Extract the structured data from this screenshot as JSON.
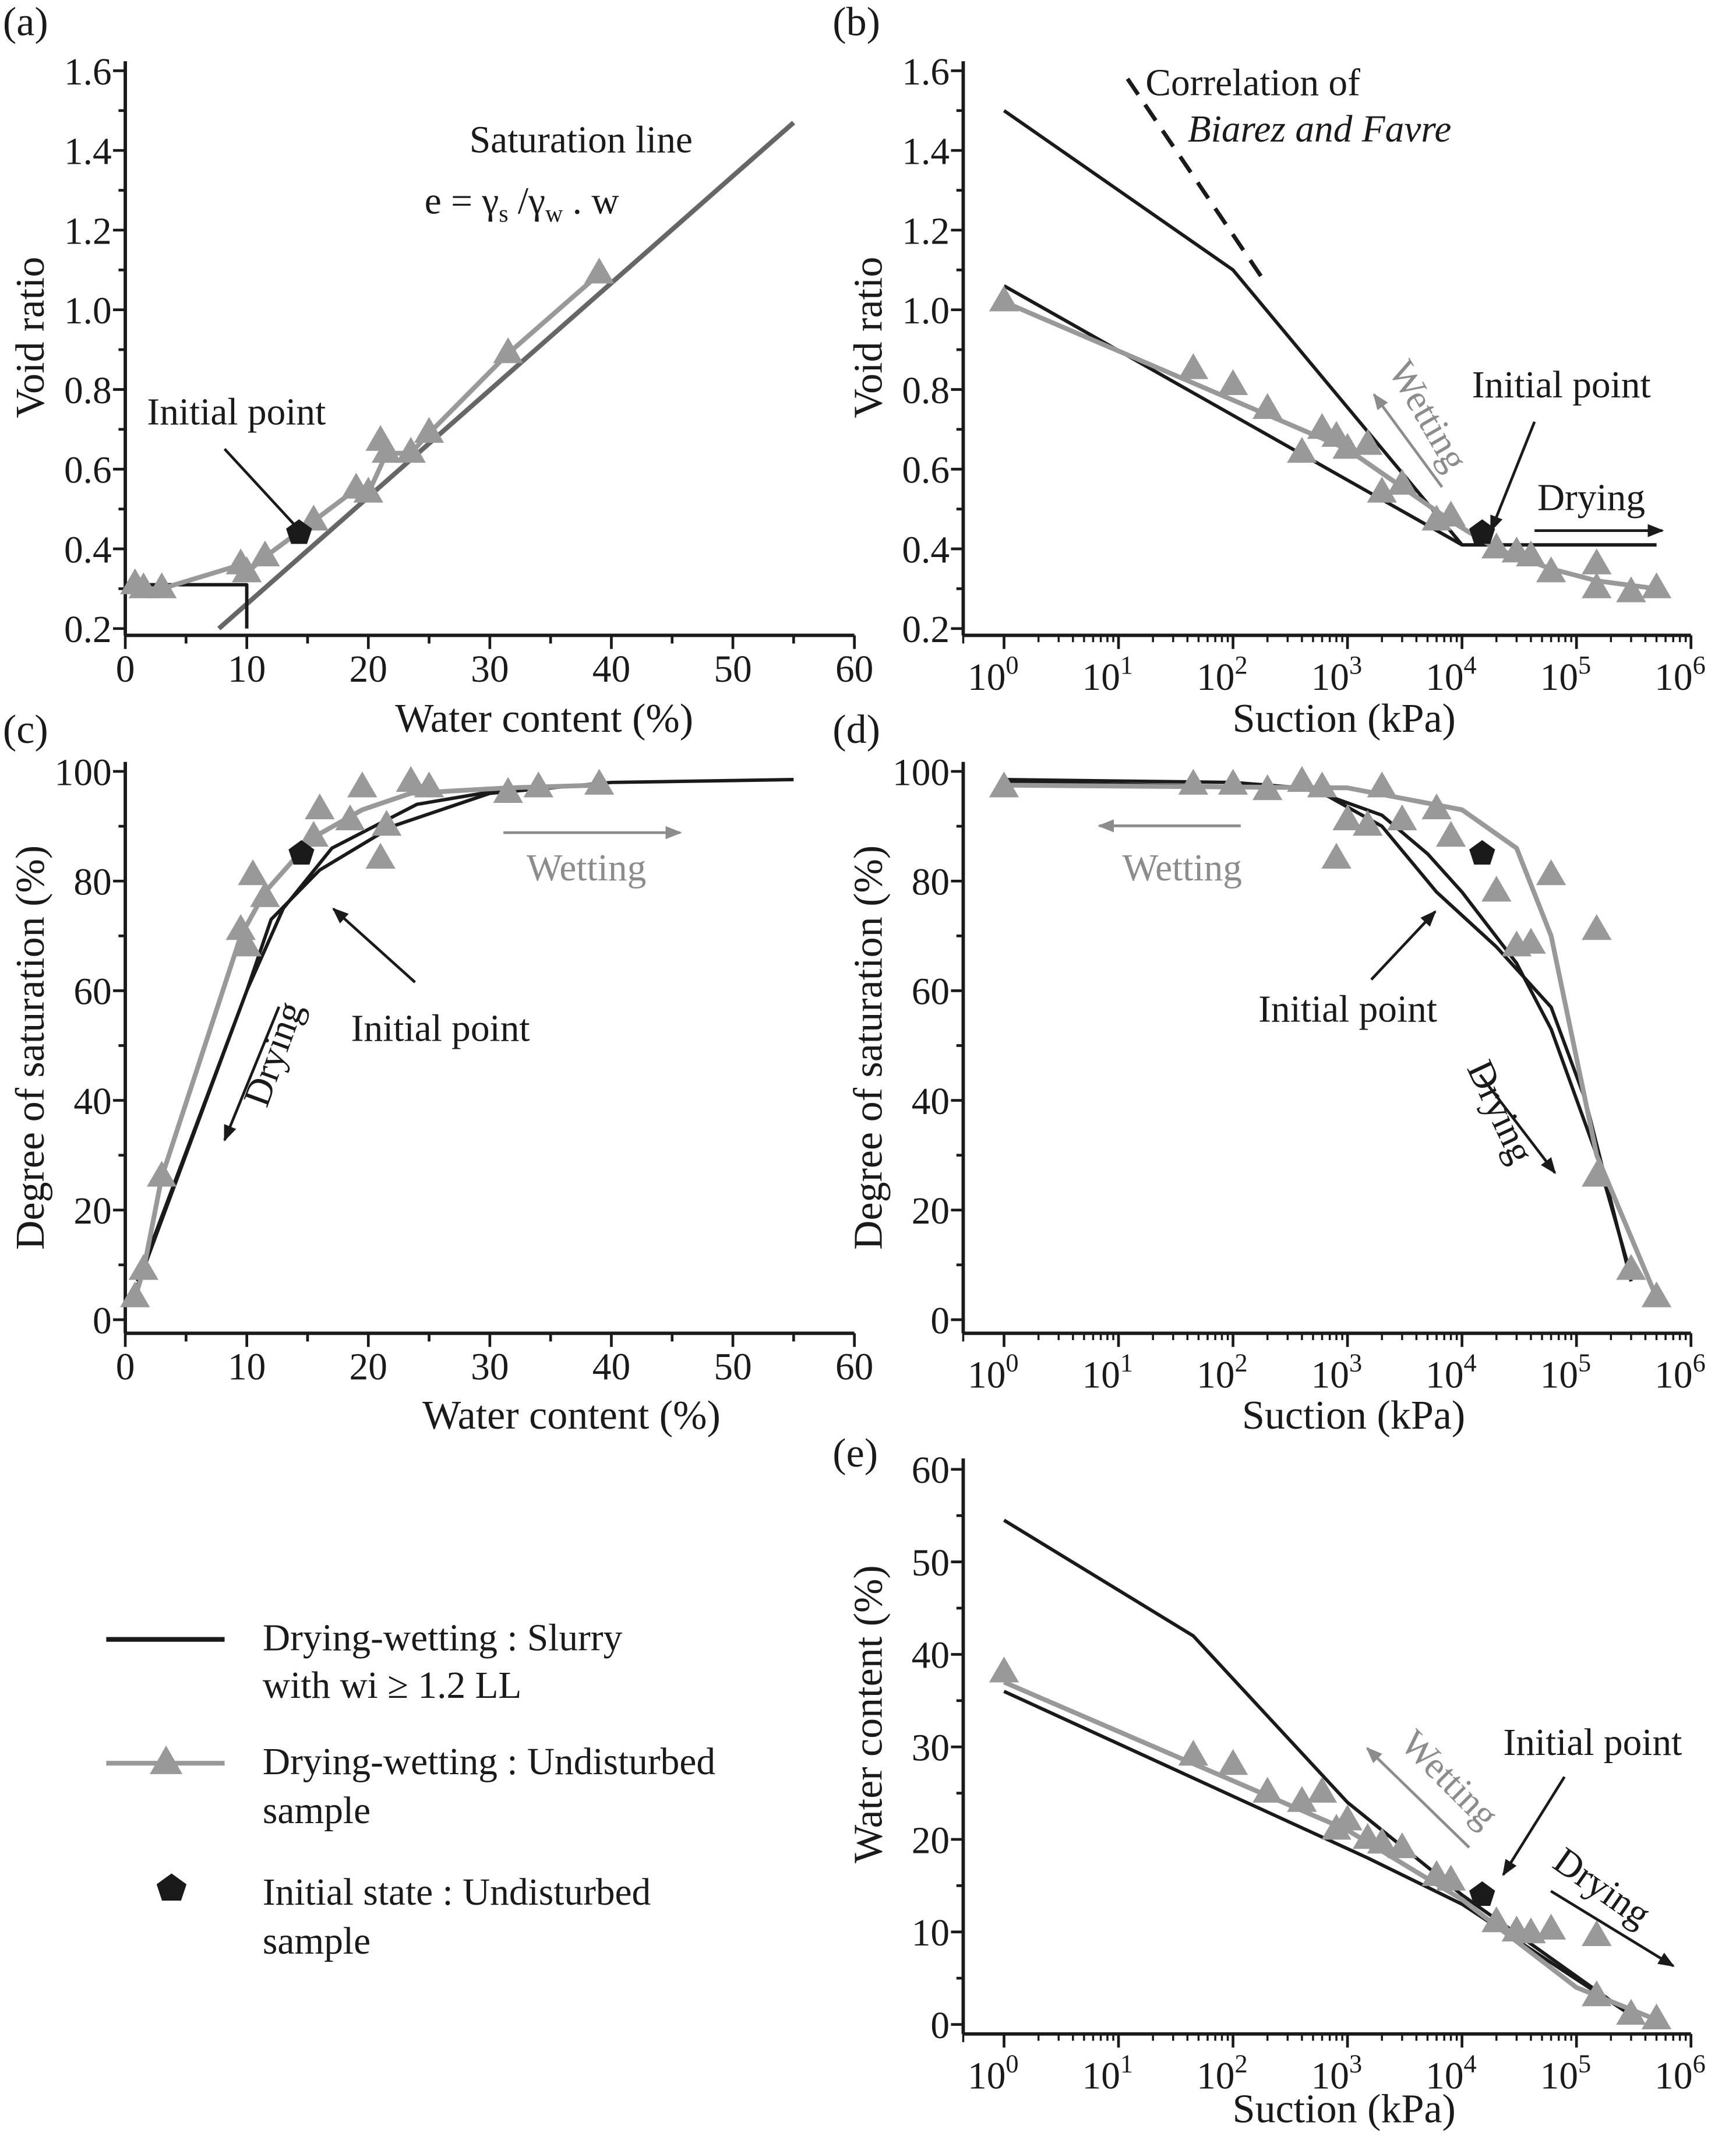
{
  "colors": {
    "slurry": "#1a1a1a",
    "undisturbed": "#999999",
    "saturation_line": "#666666",
    "initial": "#1a1a1a"
  },
  "legend": {
    "slurry_line1": "Drying-wetting : Slurry",
    "slurry_line2": "with wi ≥ 1.2 LL",
    "undisturbed_line1": "Drying-wetting : Undisturbed",
    "undisturbed_line2": "sample",
    "initial_line1": "Initial state : Undisturbed",
    "initial_line2": "sample"
  },
  "chart_data": [
    {
      "id": "a",
      "panel_label": "(a)",
      "type": "scatter",
      "xscale": "linear",
      "xlabel": "Water content (%)",
      "ylabel": "Void ratio",
      "xlim": [
        0,
        60
      ],
      "ylim": [
        0.2,
        1.6
      ],
      "xticks": [
        "0",
        "10",
        "20",
        "30",
        "40",
        "50",
        "60"
      ],
      "xtick_values": [
        0,
        10,
        20,
        30,
        40,
        50,
        60
      ],
      "yticks": [
        "0.2",
        "0.4",
        "0.6",
        "0.8",
        "1.0",
        "1.2",
        "1.4",
        "1.6"
      ],
      "ytick_values": [
        0.2,
        0.4,
        0.6,
        0.8,
        1.0,
        1.2,
        1.4,
        1.6
      ],
      "annotations": [
        "Saturation line",
        "Initial point"
      ],
      "equation": [
        "e = γ",
        "s",
        " /γ",
        "w",
        " . w"
      ],
      "lines": [
        {
          "name": "Saturation line",
          "style": "saturation_line",
          "x": [
            7.7,
            55
          ],
          "y": [
            0.2,
            1.47
          ]
        },
        {
          "name": "Slurry shrinkage",
          "style": "slurry",
          "x": [
            0,
            10,
            10
          ],
          "y": [
            0.31,
            0.31,
            0.2
          ]
        },
        {
          "name": "Undisturbed",
          "style": "undisturbed",
          "x": [
            0.8,
            1.5,
            3,
            9.5,
            10,
            11.5,
            15.5,
            19,
            20,
            21.5,
            23.5,
            25,
            31.5,
            39
          ],
          "y": [
            0.31,
            0.3,
            0.3,
            0.36,
            0.34,
            0.38,
            0.47,
            0.55,
            0.54,
            0.64,
            0.64,
            0.69,
            0.89,
            1.09
          ]
        }
      ],
      "markers": {
        "x": [
          0.8,
          1.5,
          3,
          9.5,
          10,
          11.5,
          15.5,
          19,
          20,
          21,
          21.5,
          23.5,
          25,
          31.5,
          39
        ],
        "y": [
          0.31,
          0.3,
          0.3,
          0.36,
          0.34,
          0.38,
          0.47,
          0.55,
          0.54,
          0.67,
          0.64,
          0.64,
          0.69,
          0.89,
          1.09
        ]
      },
      "initial": {
        "x": 14.3,
        "y": 0.44
      }
    },
    {
      "id": "b",
      "panel_label": "(b)",
      "type": "scatter",
      "xscale": "log",
      "xlabel": "Suction (kPa)",
      "ylabel": "Void ratio",
      "xlim": [
        1,
        1000000
      ],
      "ylim": [
        0.2,
        1.6
      ],
      "xtick_base": "10",
      "xtick_exponents": [
        "0",
        "1",
        "2",
        "3",
        "4",
        "5",
        "6"
      ],
      "yticks": [
        "0.2",
        "0.4",
        "0.6",
        "0.8",
        "1.0",
        "1.2",
        "1.4",
        "1.6"
      ],
      "ytick_values": [
        0.2,
        0.4,
        0.6,
        0.8,
        1.0,
        1.2,
        1.4,
        1.6
      ],
      "annotations": [
        "Correlation of",
        "Biarez and Favre",
        "Wetting",
        "Initial point",
        "Drying"
      ],
      "lines": [
        {
          "name": "Slurry drying",
          "style": "slurry",
          "x": [
            1,
            100,
            10000,
            500000
          ],
          "y": [
            1.5,
            1.1,
            0.41,
            0.41
          ]
        },
        {
          "name": "Slurry wetting",
          "style": "slurry",
          "x": [
            1,
            10000
          ],
          "y": [
            1.06,
            0.41
          ]
        },
        {
          "name": "Biarez and Favre",
          "style": "dashed",
          "x": [
            12,
            200
          ],
          "y": [
            1.58,
            1.06
          ]
        },
        {
          "name": "Undisturbed",
          "style": "undisturbed",
          "x": [
            1,
            1000,
            8000,
            20000,
            60000,
            150000,
            500000
          ],
          "y": [
            1.02,
            0.65,
            0.47,
            0.4,
            0.35,
            0.32,
            0.3
          ]
        }
      ],
      "markers": {
        "x": [
          1,
          45,
          100,
          200,
          400,
          600,
          800,
          1000,
          1500,
          2000,
          3000,
          6000,
          8000,
          20000,
          30000,
          40000,
          60000,
          150000,
          150000,
          300000,
          500000
        ],
        "y": [
          1.02,
          0.85,
          0.81,
          0.75,
          0.64,
          0.7,
          0.68,
          0.65,
          0.66,
          0.54,
          0.56,
          0.47,
          0.48,
          0.4,
          0.39,
          0.38,
          0.34,
          0.36,
          0.3,
          0.29,
          0.3
        ]
      },
      "initial": {
        "x": 15000,
        "y": 0.44
      }
    },
    {
      "id": "c",
      "panel_label": "(c)",
      "type": "scatter",
      "xscale": "linear",
      "xlabel": "Water content (%)",
      "ylabel": "Degree of saturation (%)",
      "xlim": [
        0,
        60
      ],
      "ylim": [
        0,
        100
      ],
      "xticks": [
        "0",
        "10",
        "20",
        "30",
        "40",
        "50",
        "60"
      ],
      "xtick_values": [
        0,
        10,
        20,
        30,
        40,
        50,
        60
      ],
      "yticks": [
        "0",
        "20",
        "40",
        "60",
        "80",
        "100"
      ],
      "ytick_values": [
        0,
        20,
        40,
        60,
        80,
        100
      ],
      "annotations": [
        "Wetting",
        "Drying",
        "Initial point"
      ],
      "lines": [
        {
          "name": "Slurry 1",
          "style": "slurry",
          "x": [
            0.8,
            10,
            12,
            16,
            22,
            30,
            40,
            55
          ],
          "y": [
            5,
            60,
            73,
            82,
            90,
            96,
            98,
            98.5
          ]
        },
        {
          "name": "Slurry 2",
          "style": "slurry",
          "x": [
            1,
            10,
            13,
            17,
            24,
            32
          ],
          "y": [
            7,
            60,
            75,
            86,
            94,
            97
          ]
        },
        {
          "name": "Undisturbed",
          "style": "undisturbed",
          "x": [
            0.8,
            1.5,
            3,
            9.5,
            11.5,
            15.5,
            19.5,
            23.5,
            31.5,
            39
          ],
          "y": [
            4,
            9,
            26,
            70,
            78,
            88,
            93,
            96,
            97,
            97.5
          ]
        }
      ],
      "markers": {
        "x": [
          0.8,
          1.5,
          3,
          9.5,
          10,
          10.5,
          11.5,
          15.5,
          16,
          18.5,
          19.5,
          21,
          21.5,
          23.5,
          25,
          31.5,
          34,
          39
        ],
        "y": [
          4,
          9,
          26,
          71,
          68,
          81,
          77,
          88,
          93,
          91,
          97,
          84,
          90,
          98,
          97,
          96,
          97,
          97.5
        ]
      },
      "initial": {
        "x": 14.5,
        "y": 85
      }
    },
    {
      "id": "d",
      "panel_label": "(d)",
      "type": "scatter",
      "xscale": "log",
      "xlabel": "Suction (kPa)",
      "ylabel": "Degree of saturation (%)",
      "xlim": [
        1,
        1000000
      ],
      "ylim": [
        0,
        100
      ],
      "xtick_base": "10",
      "xtick_exponents": [
        "0",
        "1",
        "2",
        "3",
        "4",
        "5",
        "6"
      ],
      "yticks": [
        "0",
        "20",
        "40",
        "60",
        "80",
        "100"
      ],
      "ytick_values": [
        0,
        20,
        40,
        60,
        80,
        100
      ],
      "annotations": [
        "Wetting",
        "Initial point",
        "Drying"
      ],
      "lines": [
        {
          "name": "Slurry 1",
          "style": "slurry",
          "x": [
            1,
            100,
            400,
            800,
            2000,
            5000,
            10000,
            30000,
            60000,
            150000,
            300000
          ],
          "y": [
            98.5,
            98,
            97,
            95,
            92,
            85,
            78,
            65,
            53,
            30,
            8
          ]
        },
        {
          "name": "Slurry 2",
          "style": "slurry",
          "x": [
            1,
            500,
            2000,
            6000,
            20000,
            60000,
            120000,
            300000
          ],
          "y": [
            98,
            97,
            90,
            78,
            68,
            57,
            40,
            7
          ]
        },
        {
          "name": "Undisturbed",
          "style": "undisturbed",
          "x": [
            1,
            1000,
            10000,
            30000,
            60000,
            150000,
            500000
          ],
          "y": [
            97.5,
            97,
            93,
            86,
            70,
            30,
            4
          ]
        }
      ],
      "markers": {
        "x": [
          1,
          45,
          100,
          200,
          400,
          600,
          800,
          1000,
          1500,
          2000,
          3000,
          6000,
          8000,
          20000,
          30000,
          40000,
          60000,
          150000,
          150000,
          300000,
          500000
        ],
        "y": [
          97,
          97.5,
          97.5,
          96.5,
          98,
          97,
          84,
          91,
          90,
          97,
          91,
          93,
          88,
          78,
          68,
          68.5,
          81,
          71,
          26,
          9,
          4
        ]
      },
      "initial": {
        "x": 15000,
        "y": 85
      }
    },
    {
      "id": "e",
      "panel_label": "(e)",
      "type": "scatter",
      "xscale": "log",
      "xlabel": "Suction (kPa)",
      "ylabel": "Water content (%)",
      "xlim": [
        1,
        1000000
      ],
      "ylim": [
        0,
        60
      ],
      "xtick_base": "10",
      "xtick_exponents": [
        "0",
        "1",
        "2",
        "3",
        "4",
        "5",
        "6"
      ],
      "yticks": [
        "0",
        "10",
        "20",
        "30",
        "40",
        "50",
        "60"
      ],
      "ytick_values": [
        0,
        10,
        20,
        30,
        40,
        50,
        60
      ],
      "annotations": [
        "Wetting",
        "Initial point",
        "Drying"
      ],
      "lines": [
        {
          "name": "Slurry drying",
          "style": "slurry",
          "x": [
            1,
            45,
            1000,
            10000,
            300000
          ],
          "y": [
            54.5,
            42,
            24,
            14,
            1
          ]
        },
        {
          "name": "Slurry wetting",
          "style": "slurry",
          "x": [
            1,
            1500,
            10000,
            300000
          ],
          "y": [
            36,
            18,
            13,
            1
          ]
        },
        {
          "name": "Undisturbed",
          "style": "undisturbed",
          "x": [
            1,
            1000,
            10000,
            100000,
            500000
          ],
          "y": [
            37,
            21,
            13.5,
            4,
            0.5
          ]
        }
      ],
      "markers": {
        "x": [
          1,
          45,
          100,
          200,
          400,
          600,
          800,
          1000,
          1500,
          2000,
          3000,
          6000,
          8000,
          20000,
          30000,
          40000,
          60000,
          150000,
          150000,
          300000,
          500000
        ],
        "y": [
          38,
          29,
          28,
          25,
          24,
          25,
          21,
          22,
          20,
          19.5,
          19,
          16,
          15.5,
          11,
          10,
          9.8,
          10.2,
          9.5,
          3,
          1,
          0.5
        ]
      },
      "initial": {
        "x": 15000,
        "y": 14
      }
    }
  ]
}
